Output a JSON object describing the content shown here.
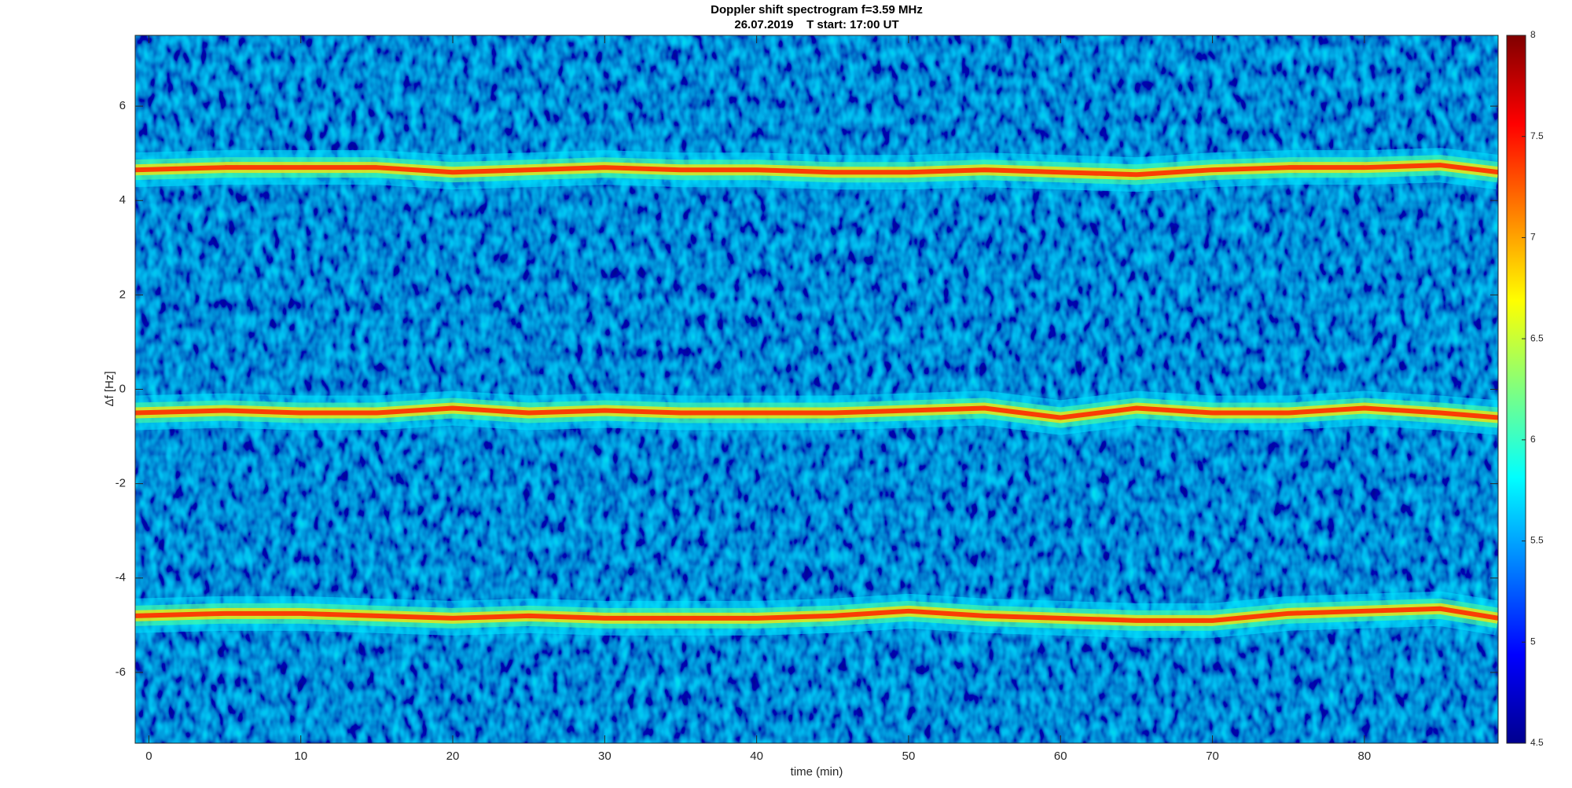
{
  "chart_data": {
    "type": "spectrogram",
    "title": "Doppler shift spectrogram f=3.59 MHz",
    "subtitle": "26.07.2019    T start: 17:00 UT",
    "x_label": "time (min)",
    "y_label": "Δf [Hz]",
    "xlim": [
      -0.9,
      88.8
    ],
    "xticks": [
      0,
      10,
      20,
      30,
      40,
      50,
      60,
      70,
      80
    ],
    "ylim": [
      -7.5,
      7.5
    ],
    "yticks": [
      -6,
      -4,
      -2,
      0,
      2,
      4,
      6
    ],
    "clim": [
      4.5,
      8
    ],
    "cticks": [
      4.5,
      5,
      5.5,
      6,
      6.5,
      7,
      7.5,
      8
    ],
    "colormap": "jet",
    "x": [
      -0.9,
      5,
      10,
      15,
      20,
      25,
      30,
      35,
      40,
      45,
      50,
      55,
      60,
      65,
      70,
      75,
      80,
      85,
      88.8
    ],
    "traces": [
      {
        "values": [
          4.65,
          4.7,
          4.7,
          4.7,
          4.6,
          4.65,
          4.7,
          4.65,
          4.65,
          4.6,
          4.6,
          4.65,
          4.6,
          4.55,
          4.65,
          4.7,
          4.7,
          4.75,
          4.6
        ]
      },
      {
        "values": [
          -0.5,
          -0.45,
          -0.5,
          -0.5,
          -0.4,
          -0.5,
          -0.45,
          -0.5,
          -0.5,
          -0.5,
          -0.45,
          -0.4,
          -0.6,
          -0.4,
          -0.5,
          -0.5,
          -0.4,
          -0.5,
          -0.6
        ]
      },
      {
        "values": [
          -4.8,
          -4.75,
          -4.75,
          -4.8,
          -4.85,
          -4.8,
          -4.85,
          -4.85,
          -4.85,
          -4.8,
          -4.7,
          -4.8,
          -4.85,
          -4.9,
          -4.9,
          -4.75,
          -4.7,
          -4.65,
          -4.85
        ]
      }
    ]
  }
}
